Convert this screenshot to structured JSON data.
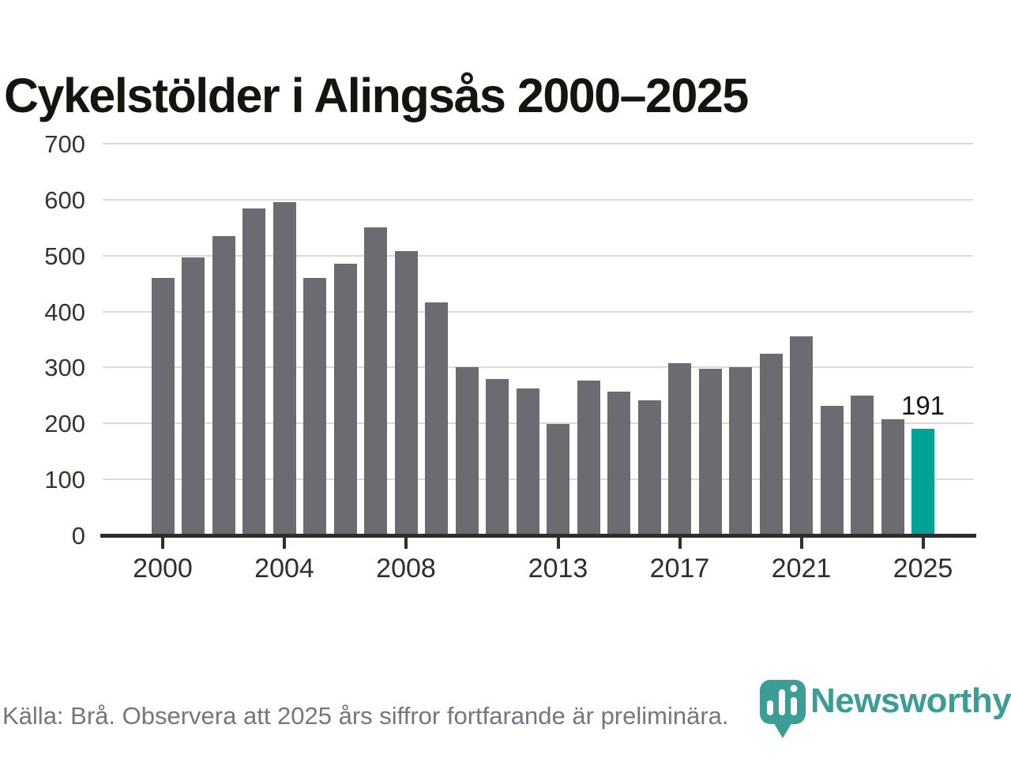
{
  "title": "Cykelstölder i Alingsås 2000–2025",
  "chart_data": {
    "type": "bar",
    "title": "Cykelstölder i Alingsås 2000–2025",
    "categories": [
      "2000",
      "2001",
      "2002",
      "2003",
      "2004",
      "2005",
      "2006",
      "2007",
      "2008",
      "2009",
      "2010",
      "2011",
      "2012",
      "2013",
      "2014",
      "2015",
      "2016",
      "2017",
      "2018",
      "2019",
      "2020",
      "2021",
      "2022",
      "2023",
      "2024",
      "2025"
    ],
    "values": [
      460,
      497,
      535,
      584,
      595,
      460,
      485,
      550,
      508,
      417,
      300,
      280,
      263,
      199,
      277,
      257,
      241,
      307,
      298,
      300,
      325,
      355,
      232,
      250,
      207,
      191
    ],
    "ylim": [
      0,
      700
    ],
    "yticks": [
      0,
      100,
      200,
      300,
      400,
      500,
      600,
      700
    ],
    "xticks": [
      "2000",
      "2004",
      "2008",
      "2013",
      "2017",
      "2021",
      "2025"
    ],
    "grid": "horizontal",
    "legend": "none",
    "bar_color": "#6b6b71",
    "highlight_category": "2025",
    "highlight_color": "#00a496",
    "highlight_value_label": "191"
  },
  "footer": {
    "source_note": "Källa: Brå. Observera att 2025 års siffror fortfarande är preliminära."
  },
  "logo": {
    "brand": "Newsworthy",
    "icon": "newsworthy-pin-bar-chart-icon",
    "brand_color": "#3b9d96"
  }
}
